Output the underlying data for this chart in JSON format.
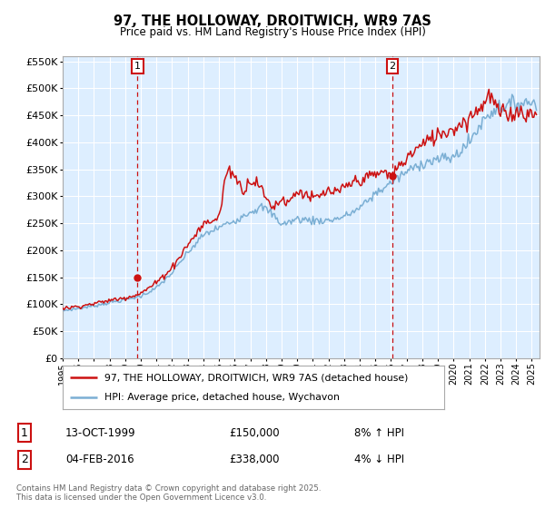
{
  "title": "97, THE HOLLOWAY, DROITWICH, WR9 7AS",
  "subtitle": "Price paid vs. HM Land Registry's House Price Index (HPI)",
  "legend_line1": "97, THE HOLLOWAY, DROITWICH, WR9 7AS (detached house)",
  "legend_line2": "HPI: Average price, detached house, Wychavon",
  "hpi_color": "#7bafd4",
  "price_color": "#cc1111",
  "sale1_date": "13-OCT-1999",
  "sale1_price": 150000,
  "sale1_note": "8% ↑ HPI",
  "sale2_date": "04-FEB-2016",
  "sale2_price": 338000,
  "sale2_note": "4% ↓ HPI",
  "sale1_year": 1999.78,
  "sale2_year": 2016.09,
  "ylim": [
    0,
    560000
  ],
  "yticks": [
    0,
    50000,
    100000,
    150000,
    200000,
    250000,
    300000,
    350000,
    400000,
    450000,
    500000,
    550000
  ],
  "plot_bg": "#ddeeff",
  "footer": "Contains HM Land Registry data © Crown copyright and database right 2025.\nThis data is licensed under the Open Government Licence v3.0."
}
